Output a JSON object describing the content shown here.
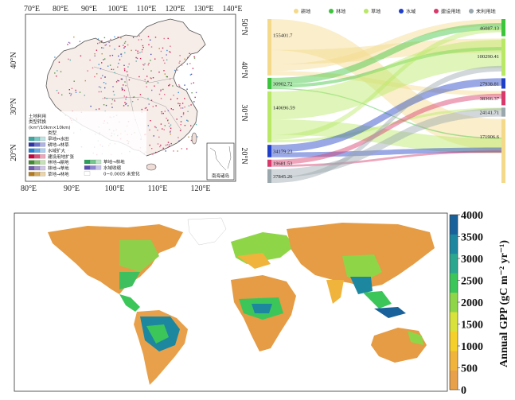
{
  "china_map": {
    "top_ticks": [
      "70°E",
      "80°E",
      "90°E",
      "100°E",
      "110°E",
      "120°E",
      "130°E",
      "140°E"
    ],
    "bottom_ticks": [
      "80°E",
      "90°E",
      "100°E",
      "110°E",
      "120°E"
    ],
    "left_ticks": [
      "40°N",
      "30°N",
      "20°N"
    ],
    "right_ticks": [
      "50°N",
      "40°N",
      "30°N",
      "20°N"
    ],
    "legend": {
      "title_lines": [
        "土地利用",
        "类型转换",
        "(km²/10km×10km)"
      ],
      "scale_header": "类型",
      "items": [
        {
          "label": "旱地↔水田",
          "colors": [
            "#3fa7a0",
            "#75c9c3",
            "#bde4e1"
          ]
        },
        {
          "label": "耕地→林草",
          "colors": [
            "#2c33a8",
            "#6b72cf",
            "#aeb2e6"
          ]
        },
        {
          "label": "水域扩大",
          "colors": [
            "#1f7fd4",
            "#62a9e6",
            "#a9d0f3"
          ]
        },
        {
          "label": "建设用地扩张",
          "colors": [
            "#c8003c",
            "#e0507a",
            "#f1a3b8"
          ]
        },
        {
          "label": "林地→耕地",
          "colors": [
            "#3f8a2e",
            "#84be6c",
            "#c4e2b3"
          ]
        },
        {
          "label": "林地→草地",
          "colors": [
            "#6e5aa8",
            "#9f8fcb",
            "#d0c7e6"
          ]
        },
        {
          "label": "草地→林地",
          "colors": [
            "#b37a1e",
            "#d6aa5c",
            "#ecd4a6"
          ]
        }
      ],
      "right_items": [
        {
          "label": "草地→林地",
          "colors": [
            "#2aa05a",
            "#74c78e",
            "#bfe5c8"
          ]
        },
        {
          "label": "水域收缩",
          "colors": [
            "#5a4fb0",
            "#8f86d0",
            "#c8c3ea"
          ]
        },
        {
          "label": "0~0.0005 未变化",
          "colors": [
            "#ffffff"
          ]
        }
      ]
    },
    "inset_label": "南海诸岛"
  },
  "sankey": {
    "legend": [
      {
        "label": "耕地",
        "color": "#f5d98b"
      },
      {
        "label": "林地",
        "color": "#3cc43c"
      },
      {
        "label": "草地",
        "color": "#b8e866"
      },
      {
        "label": "水域",
        "color": "#1f3fc8"
      },
      {
        "label": "建设用地",
        "color": "#d8386a"
      },
      {
        "label": "未利用地",
        "color": "#9aa7ad"
      }
    ],
    "left_values": [
      "155401.7",
      "30902.72",
      "140696.59",
      "34179.23",
      "19681.53",
      "37845.26"
    ],
    "right_values": [
      "46087.13",
      "100290.41",
      "27938.81",
      "38366.37",
      "24141.71",
      "171906.6"
    ]
  },
  "world_map": {
    "colorbar": {
      "title": "Annual GPP (gC m⁻² yr⁻¹)",
      "ticks": [
        "4000",
        "3500",
        "3000",
        "2500",
        "2000",
        "1500",
        "1000",
        "500",
        "0"
      ],
      "colors": [
        "#e8a14a",
        "#f0b43c",
        "#f6d02a",
        "#d9e23a",
        "#8ed647",
        "#3cc65a",
        "#2ba790",
        "#1d87a0",
        "#18619a"
      ]
    }
  }
}
